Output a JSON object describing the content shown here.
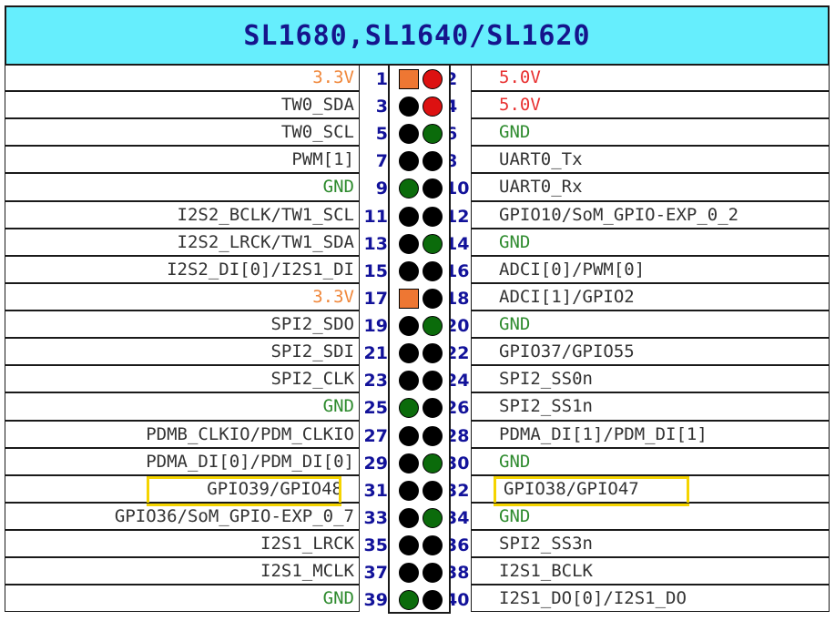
{
  "title": "SL1680,SL1640/SL1620",
  "colors": {
    "title_bg": "#66eefd",
    "title_text": "#15158c",
    "pin_number": "#12129a",
    "label_default": "#333333",
    "label_3v3": "#f0883c",
    "label_5v": "#e83030",
    "label_gnd": "#2e8b2e",
    "highlight_box": "#f5d400",
    "pin_signal": "#000000",
    "pin_gnd": "#0b6b0b",
    "pin_5v": "#dd1111",
    "pin_3v3": "#ee7733"
  },
  "rows": [
    {
      "left": {
        "pin": "1",
        "label": "3.3V",
        "type": "3v3",
        "shape": "square"
      },
      "right": {
        "pin": "2",
        "label": "5.0V",
        "type": "5v"
      }
    },
    {
      "left": {
        "pin": "3",
        "label": "TW0_SDA",
        "type": "signal"
      },
      "right": {
        "pin": "4",
        "label": "5.0V",
        "type": "5v"
      }
    },
    {
      "left": {
        "pin": "5",
        "label": "TW0_SCL",
        "type": "signal"
      },
      "right": {
        "pin": "6",
        "label": "GND",
        "type": "gnd"
      }
    },
    {
      "left": {
        "pin": "7",
        "label": "PWM[1]",
        "type": "signal"
      },
      "right": {
        "pin": "8",
        "label": "UART0_Tx",
        "type": "signal"
      }
    },
    {
      "left": {
        "pin": "9",
        "label": "GND",
        "type": "gnd"
      },
      "right": {
        "pin": "10",
        "label": "UART0_Rx",
        "type": "signal"
      }
    },
    {
      "left": {
        "pin": "11",
        "label": "I2S2_BCLK/TW1_SCL",
        "type": "signal"
      },
      "right": {
        "pin": "12",
        "label": "GPIO10/SoM_GPIO-EXP_0_2",
        "type": "signal"
      }
    },
    {
      "left": {
        "pin": "13",
        "label": "I2S2_LRCK/TW1_SDA",
        "type": "signal"
      },
      "right": {
        "pin": "14",
        "label": "GND",
        "type": "gnd"
      }
    },
    {
      "left": {
        "pin": "15",
        "label": "I2S2_DI[0]/I2S1_DI",
        "type": "signal"
      },
      "right": {
        "pin": "16",
        "label": "ADCI[0]/PWM[0]",
        "type": "signal"
      }
    },
    {
      "left": {
        "pin": "17",
        "label": "3.3V",
        "type": "3v3",
        "shape": "square"
      },
      "right": {
        "pin": "18",
        "label": "ADCI[1]/GPIO2",
        "type": "signal"
      }
    },
    {
      "left": {
        "pin": "19",
        "label": "SPI2_SDO",
        "type": "signal"
      },
      "right": {
        "pin": "20",
        "label": "GND",
        "type": "gnd"
      }
    },
    {
      "left": {
        "pin": "21",
        "label": "SPI2_SDI",
        "type": "signal"
      },
      "right": {
        "pin": "22",
        "label": "GPIO37/GPIO55",
        "type": "signal"
      }
    },
    {
      "left": {
        "pin": "23",
        "label": "SPI2_CLK",
        "type": "signal"
      },
      "right": {
        "pin": "24",
        "label": "SPI2_SS0n",
        "type": "signal"
      }
    },
    {
      "left": {
        "pin": "25",
        "label": "GND",
        "type": "gnd"
      },
      "right": {
        "pin": "26",
        "label": "SPI2_SS1n",
        "type": "signal"
      }
    },
    {
      "left": {
        "pin": "27",
        "label": "PDMB_CLKIO/PDM_CLKIO",
        "type": "signal"
      },
      "right": {
        "pin": "28",
        "label": "PDMA_DI[1]/PDM_DI[1]",
        "type": "signal"
      }
    },
    {
      "left": {
        "pin": "29",
        "label": "PDMA_DI[0]/PDM_DI[0]",
        "type": "signal"
      },
      "right": {
        "pin": "30",
        "label": "GND",
        "type": "gnd"
      }
    },
    {
      "left": {
        "pin": "31",
        "label": "GPIO39/GPIO48",
        "type": "signal",
        "highlight": true
      },
      "right": {
        "pin": "32",
        "label": "GPIO38/GPIO47",
        "type": "signal",
        "highlight": true
      }
    },
    {
      "left": {
        "pin": "33",
        "label": "GPIO36/SoM_GPIO-EXP_0_7",
        "type": "signal"
      },
      "right": {
        "pin": "34",
        "label": "GND",
        "type": "gnd"
      }
    },
    {
      "left": {
        "pin": "35",
        "label": "I2S1_LRCK",
        "type": "signal"
      },
      "right": {
        "pin": "36",
        "label": "SPI2_SS3n",
        "type": "signal"
      }
    },
    {
      "left": {
        "pin": "37",
        "label": "I2S1_MCLK",
        "type": "signal"
      },
      "right": {
        "pin": "38",
        "label": "I2S1_BCLK",
        "type": "signal"
      }
    },
    {
      "left": {
        "pin": "39",
        "label": "GND",
        "type": "gnd"
      },
      "right": {
        "pin": "40",
        "label": "I2S1_DO[0]/I2S1_DO",
        "type": "signal"
      }
    }
  ]
}
